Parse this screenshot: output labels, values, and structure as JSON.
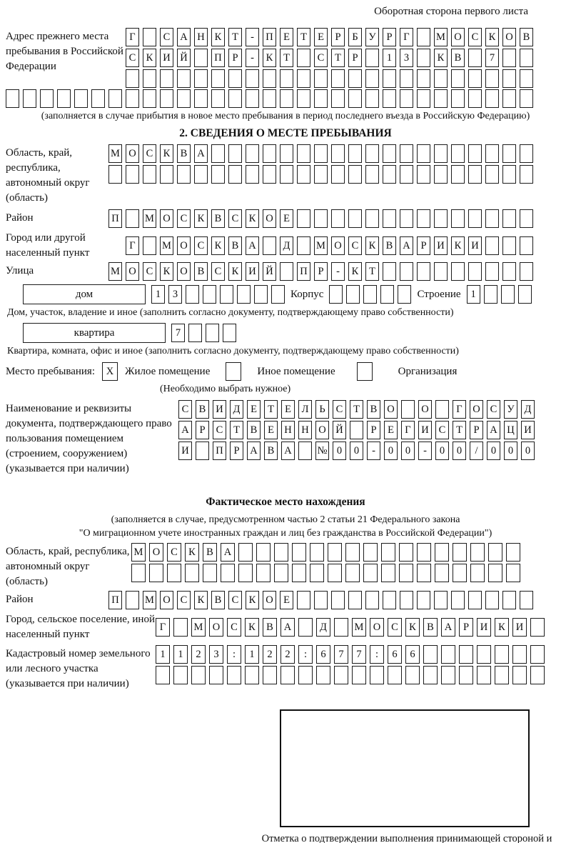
{
  "header": {
    "note": "Оборотная сторона первого листа"
  },
  "prev": {
    "label": "Адрес прежнего места пребывания в Российской Федерации",
    "row1": {
      "len": 24,
      "text": "Г САНКТ-ПЕТЕРБУРГ МОСКОВ"
    },
    "row2": {
      "len": 24,
      "text": "СКИЙ ПР-КТ СТР 13 КВ 7"
    },
    "row3": {
      "len": 24,
      "text": ""
    },
    "row4": {
      "len": 31,
      "text": ""
    },
    "caption": "(заполняется в случае прибытия в новое место пребывания в период последнего въезда в Российскую Федерацию)"
  },
  "sec2": {
    "title": "2. СВЕДЕНИЯ О МЕСТЕ ПРЕБЫВАНИЯ",
    "region_label": "Область, край, республика, автономный округ (область)",
    "region_row1": {
      "len": 25,
      "text": "МОСКВА"
    },
    "region_row2": {
      "len": 25,
      "text": ""
    },
    "district_label": "Район",
    "district_row": {
      "len": 25,
      "text": "П МОСКВСКОЕ"
    },
    "city_label": "Город или другой населенный пункт",
    "city_row": {
      "len": 24,
      "text": "Г МОСКВА Д МОСКВАРИКИ"
    },
    "street_label": "Улица",
    "street_row": {
      "len": 25,
      "text": "МОСКОВСКИЙ ПР-КТ"
    },
    "house_box": "дом",
    "house_row": {
      "len": 8,
      "text": "13"
    },
    "korpus_label": "Корпус",
    "korpus_row": {
      "len": 5,
      "text": ""
    },
    "stroenie_label": "Строение",
    "stroenie_row": {
      "len": 4,
      "text": "1"
    },
    "house_caption": "Дом, участок, владение и иное (заполнить согласно документу, подтверждающему право собственности)",
    "apt_box": "квартира",
    "apt_row": {
      "len": 4,
      "text": "7"
    },
    "apt_caption": "Квартира, комната, офис и иное (заполнить согласно документу, подтверждающему право собственности)",
    "stay_label": "Место пребывания:",
    "stay_options": [
      {
        "label": "Жилое помещение",
        "mark": "X"
      },
      {
        "label": "Иное помещение",
        "mark": ""
      },
      {
        "label": "Организация",
        "mark": ""
      }
    ],
    "stay_note": "(Необходимо выбрать нужное)",
    "doc_label": "Наименование и реквизиты документа, подтверждающего право пользования помещением (строением, сооружением) (указывается при наличии)",
    "doc_row1": {
      "len": 21,
      "text": "СВИДЕТЕЛЬСТВО О ГОСУД"
    },
    "doc_row2": {
      "len": 21,
      "text": "АРСТВЕННОЙ РЕГИСТРАЦИ"
    },
    "doc_row3": {
      "len": 21,
      "text": "И ПРАВА №00-00-00/000"
    }
  },
  "fact": {
    "title": "Фактическое место нахождения",
    "caption1": "(заполняется в случае, предусмотренном частью 2 статьи 21 Федерального закона",
    "caption2": "\"О миграционном учете иностранных граждан и лиц без гражданства в Российской Федерации\")",
    "region_label": "Область, край, республика, автономный округ (область)",
    "region_row1": {
      "len": 22,
      "text": "МОСКВА"
    },
    "region_row2": {
      "len": 22,
      "text": ""
    },
    "district_label": "Район",
    "district_row": {
      "len": 25,
      "text": "П МОСКВСКОЕ"
    },
    "city_label": "Город, сельское поселение, иной населенный пункт",
    "city_row": {
      "len": 22,
      "text": "Г МОСКВА Д МОСКВАРИКИ"
    },
    "cadastral_label": "Кадастровый номер земельного или лесного участка (указывается при наличии)",
    "cadastral_row1": {
      "len": 22,
      "text": "1123:122:677:66"
    },
    "cadastral_row2": {
      "len": 22,
      "text": ""
    }
  },
  "stamp": {
    "caption": "Отметка о подтверждении выполнения принимающей стороной и иностранным гражданином или лицом без гражданства действий, необходимых для его постановки на учет по месту пребывания"
  }
}
